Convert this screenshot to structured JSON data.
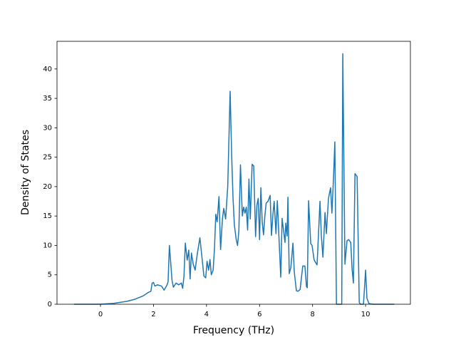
{
  "chart_data": {
    "type": "line",
    "x_label": "Frequency (THz)",
    "y_label": "Density of States",
    "xlim": [
      -1.64,
      11.69
    ],
    "ylim": [
      0,
      44.7
    ],
    "xticks": [
      0,
      2,
      4,
      6,
      8,
      10
    ],
    "yticks": [
      0,
      5,
      10,
      15,
      20,
      25,
      30,
      35,
      40
    ],
    "series": [
      {
        "color": "#1f77b4",
        "x": [
          -1.0,
          0,
          0.5,
          1.0,
          1.3,
          1.6,
          1.8,
          1.9,
          1.95,
          2.0,
          2.05,
          2.15,
          2.3,
          2.4,
          2.5,
          2.55,
          2.6,
          2.7,
          2.75,
          2.85,
          2.95,
          3.05,
          3.1,
          3.15,
          3.2,
          3.27,
          3.33,
          3.38,
          3.43,
          3.5,
          3.57,
          3.65,
          3.75,
          3.85,
          3.9,
          3.97,
          4.02,
          4.08,
          4.13,
          4.18,
          4.25,
          4.3,
          4.35,
          4.4,
          4.47,
          4.53,
          4.6,
          4.65,
          4.72,
          4.8,
          4.89,
          4.95,
          5.0,
          5.05,
          5.12,
          5.17,
          5.22,
          5.28,
          5.35,
          5.4,
          5.45,
          5.5,
          5.55,
          5.6,
          5.65,
          5.72,
          5.78,
          5.85,
          5.9,
          5.95,
          6.0,
          6.05,
          6.1,
          6.15,
          6.2,
          6.25,
          6.32,
          6.4,
          6.45,
          6.5,
          6.55,
          6.62,
          6.67,
          6.8,
          6.85,
          6.96,
          6.99,
          7.04,
          7.07,
          7.12,
          7.18,
          7.26,
          7.31,
          7.39,
          7.45,
          7.53,
          7.63,
          7.71,
          7.77,
          7.8,
          7.85,
          7.93,
          7.98,
          8.06,
          8.17,
          8.28,
          8.33,
          8.39,
          8.47,
          8.52,
          8.6,
          8.68,
          8.73,
          8.79,
          8.84,
          8.9,
          9.1,
          9.14,
          9.22,
          9.3,
          9.36,
          9.44,
          9.49,
          9.54,
          9.6,
          9.68,
          9.76,
          9.81,
          9.92,
          10.0,
          10.05,
          10.13,
          10.27,
          11.08
        ],
        "values": [
          0,
          0,
          0.15,
          0.5,
          0.85,
          1.4,
          2.0,
          2.2,
          3.6,
          3.7,
          3.1,
          3.3,
          3.1,
          2.4,
          3.2,
          3.8,
          10.0,
          4.0,
          2.9,
          3.6,
          3.3,
          3.6,
          2.7,
          4.8,
          10.4,
          7.5,
          9.2,
          4.3,
          8.7,
          6.8,
          5.8,
          8.5,
          11.3,
          7.0,
          4.8,
          4.5,
          7.3,
          5.8,
          7.6,
          5.0,
          5.8,
          9.5,
          15.3,
          14.0,
          18.3,
          9.3,
          14.5,
          16.3,
          14.5,
          20.0,
          36.2,
          25.0,
          18.0,
          13.5,
          11.0,
          10.0,
          12.5,
          23.7,
          15.0,
          16.5,
          15.5,
          16.5,
          12.6,
          21.3,
          14.5,
          23.8,
          23.5,
          11.5,
          16.8,
          18.0,
          11.0,
          19.8,
          14.0,
          11.8,
          15.0,
          17.2,
          17.5,
          18.5,
          11.7,
          15.0,
          17.5,
          12.0,
          17.6,
          4.6,
          14.6,
          10.5,
          13.8,
          11.6,
          18.2,
          5.2,
          6.2,
          10.4,
          5.5,
          2.3,
          2.2,
          2.5,
          6.5,
          6.5,
          3.0,
          2.8,
          17.6,
          10.3,
          10.0,
          7.5,
          6.7,
          17.5,
          11.7,
          8.0,
          15.6,
          12.0,
          18.0,
          19.8,
          15.5,
          21.5,
          27.6,
          0,
          0,
          42.6,
          6.8,
          10.8,
          11.0,
          10.5,
          6.0,
          3.6,
          22.2,
          21.7,
          0.3,
          0,
          0,
          5.8,
          1.0,
          0.1,
          0,
          0
        ]
      }
    ]
  }
}
